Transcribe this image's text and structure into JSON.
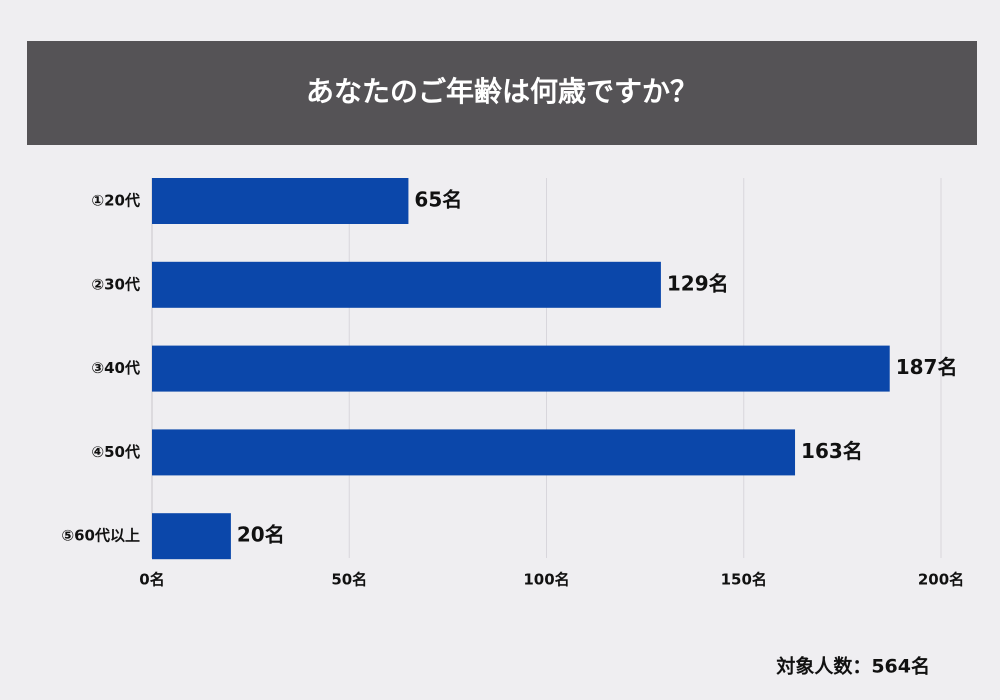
{
  "chart_data": {
    "type": "bar",
    "orientation": "horizontal",
    "title": "あなたのご年齢は何歳ですか？",
    "categories": [
      "①20代",
      "②30代",
      "③40代",
      "④50代",
      "⑤60代以上"
    ],
    "values": [
      65,
      129,
      187,
      163,
      20
    ],
    "value_labels": [
      "65名",
      "129名",
      "187名",
      "163名",
      "20名"
    ],
    "color": "#0b47aa",
    "xlim": [
      0,
      200
    ],
    "xticks": [
      {
        "value": 0,
        "label": "0名"
      },
      {
        "value": 50,
        "label": "50名"
      },
      {
        "value": 100,
        "label": "100名"
      },
      {
        "value": 150,
        "label": "150名"
      },
      {
        "value": 200,
        "label": "200名"
      }
    ],
    "grid": true,
    "note": "対象人数：564名"
  }
}
